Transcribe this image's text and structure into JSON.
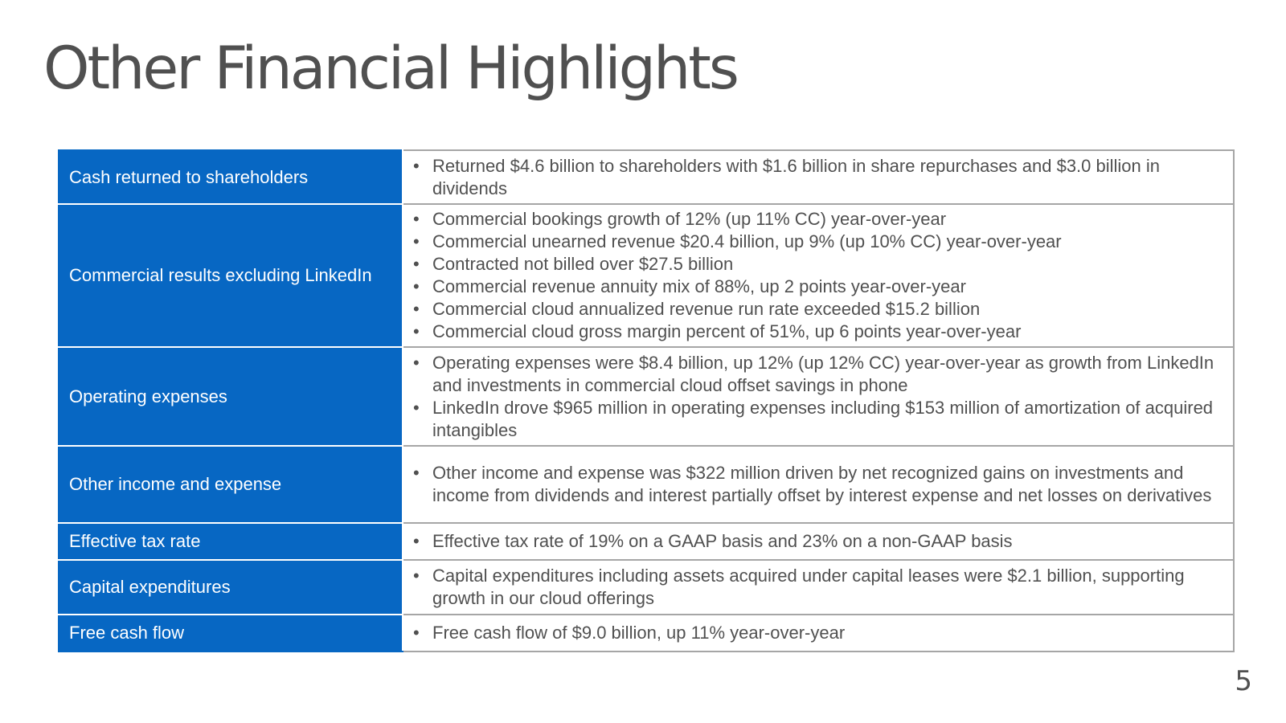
{
  "title": "Other Financial Highlights",
  "page_number": "5",
  "colors": {
    "category_background": "#0767c3",
    "category_text": "#ffffff",
    "body_text": "#505050",
    "border": "#a6a6a6"
  },
  "rows": [
    {
      "category": "Cash returned to shareholders",
      "details": [
        "Returned $4.6 billion to shareholders with $1.6 billion in share repurchases and $3.0 billion in dividends"
      ]
    },
    {
      "category": "Commercial results excluding LinkedIn",
      "details": [
        "Commercial bookings growth of 12% (up 11% CC) year-over-year",
        "Commercial unearned revenue $20.4 billion, up 9% (up 10% CC) year-over-year",
        "Contracted not billed over $27.5 billion",
        "Commercial revenue annuity mix of 88%, up 2 points year-over-year",
        "Commercial cloud annualized revenue run rate exceeded $15.2 billion",
        "Commercial cloud gross margin percent of 51%, up 6 points year-over-year"
      ]
    },
    {
      "category": "Operating expenses",
      "details": [
        "Operating expenses were $8.4 billion, up 12% (up 12% CC) year-over-year as growth from LinkedIn and investments in commercial cloud offset savings in phone",
        "LinkedIn drove $965 million in operating expenses including $153 million of amortization of acquired intangibles"
      ]
    },
    {
      "category": "Other income and expense",
      "details": [
        "Other income and expense was $322 million driven by net recognized gains on investments and income from dividends and interest partially offset by interest expense and net losses on derivatives"
      ]
    },
    {
      "category": "Effective tax rate",
      "details": [
        "Effective tax rate of 19% on a GAAP basis and 23% on a non-GAAP basis"
      ]
    },
    {
      "category": "Capital expenditures",
      "details": [
        "Capital expenditures including assets acquired under capital leases were $2.1 billion, supporting growth in our cloud offerings"
      ]
    },
    {
      "category": "Free cash flow",
      "details": [
        "Free cash flow of $9.0 billion, up 11% year-over-year"
      ]
    }
  ]
}
